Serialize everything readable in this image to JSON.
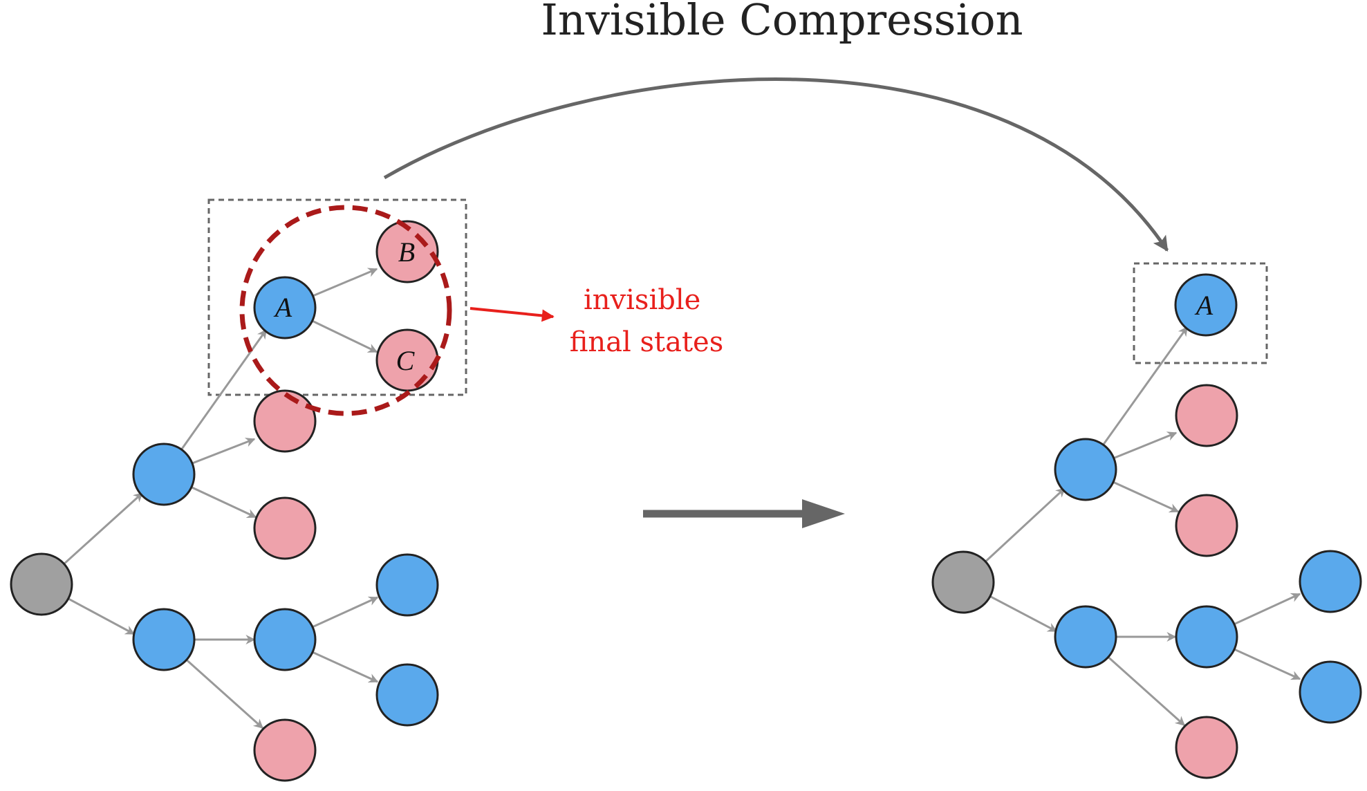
{
  "title": "Invisible Compression",
  "annotation": {
    "line1": "invisible",
    "line2": "final states"
  },
  "colors": {
    "blue": "#5aa9ec",
    "pink": "#eea2ab",
    "gray": "#a0a0a0",
    "edge": "#999999",
    "highlight": "#aa1a1a",
    "annotation": "#e8201c",
    "arrow": "#666666"
  },
  "left_tree": {
    "nodes": [
      {
        "id": "root",
        "type": "gray",
        "label": ""
      },
      {
        "id": "u1",
        "type": "blue",
        "label": ""
      },
      {
        "id": "l1",
        "type": "blue",
        "label": ""
      },
      {
        "id": "a",
        "type": "blue",
        "label": "A"
      },
      {
        "id": "b",
        "type": "pink",
        "label": "B"
      },
      {
        "id": "c",
        "type": "pink",
        "label": "C"
      },
      {
        "id": "p1",
        "type": "pink",
        "label": ""
      },
      {
        "id": "p2",
        "type": "pink",
        "label": ""
      },
      {
        "id": "m1",
        "type": "blue",
        "label": ""
      },
      {
        "id": "p3",
        "type": "pink",
        "label": ""
      },
      {
        "id": "b1",
        "type": "blue",
        "label": ""
      },
      {
        "id": "b2",
        "type": "blue",
        "label": ""
      }
    ]
  },
  "right_tree": {
    "nodes": [
      {
        "id": "root",
        "type": "gray",
        "label": ""
      },
      {
        "id": "u1",
        "type": "blue",
        "label": ""
      },
      {
        "id": "l1",
        "type": "blue",
        "label": ""
      },
      {
        "id": "a",
        "type": "blue",
        "label": "A"
      },
      {
        "id": "p1",
        "type": "pink",
        "label": ""
      },
      {
        "id": "p2",
        "type": "pink",
        "label": ""
      },
      {
        "id": "m1",
        "type": "blue",
        "label": ""
      },
      {
        "id": "p3",
        "type": "pink",
        "label": ""
      },
      {
        "id": "b1",
        "type": "blue",
        "label": ""
      },
      {
        "id": "b2",
        "type": "blue",
        "label": ""
      }
    ]
  }
}
